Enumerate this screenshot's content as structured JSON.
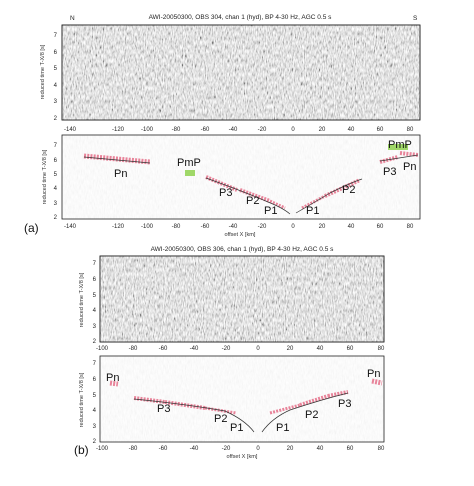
{
  "panels": [
    {
      "id": "a",
      "label": "(a)",
      "title": "AWI-20050300, OBS 304, chan 1 (hyd), BP 4-30 Hz, AGC 0.5 s",
      "left_dir": "N",
      "right_dir": "S",
      "ylabel": "reduced time T-X/8 [s]",
      "xlabel": "offset X [km]",
      "x_ticks": [
        "-140",
        "-120",
        "-100",
        "-80",
        "-60",
        "-40",
        "-20",
        "0",
        "20",
        "40",
        "60",
        "80"
      ],
      "seis_y_ticks": [
        "7",
        "6",
        "5",
        "4",
        "3",
        "2"
      ],
      "pick_y_ticks": [
        "7",
        "6",
        "5",
        "4",
        "3",
        "2"
      ],
      "phases": [
        "Pn",
        "PmP",
        "P3",
        "P2",
        "P1",
        "P1",
        "P2",
        "P3",
        "PmP",
        "Pn"
      ]
    },
    {
      "id": "b",
      "label": "(b)",
      "title": "AWI-20050300, OBS 306, chan 1 (hyd), BP 4-30 Hz, AGC 0.5 s",
      "left_dir": "",
      "right_dir": "",
      "ylabel": "reduced time T-X/8 [s]",
      "xlabel": "offset X [km]",
      "x_ticks": [
        "-100",
        "-80",
        "-60",
        "-40",
        "-20",
        "0",
        "20",
        "40",
        "60",
        "80"
      ],
      "seis_y_ticks": [
        "7",
        "6",
        "5",
        "4",
        "3",
        "2"
      ],
      "pick_y_ticks": [
        "7",
        "6",
        "5",
        "4",
        "3",
        "2"
      ],
      "phases": [
        "Pn",
        "P3",
        "P2",
        "P1",
        "P1",
        "P2",
        "P3",
        "Pn"
      ]
    }
  ],
  "colors": {
    "picks_observed": "#e8849a",
    "pmp": "#8fd14f",
    "model": "#333333"
  }
}
